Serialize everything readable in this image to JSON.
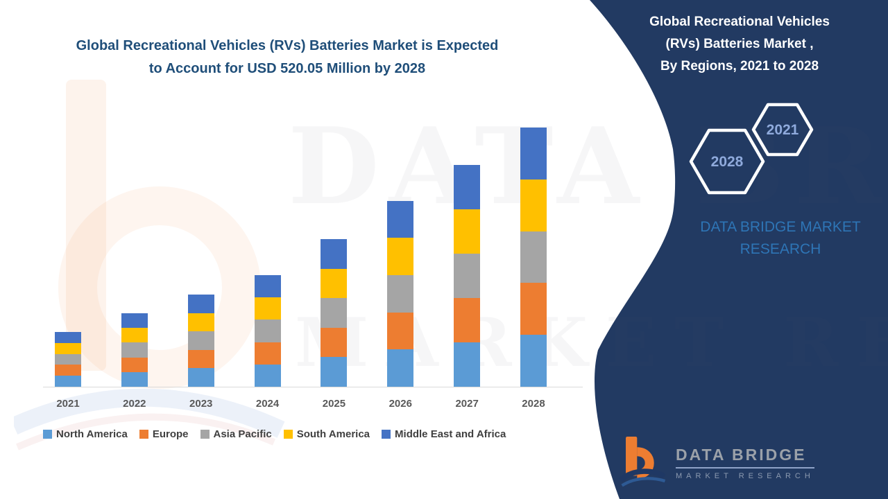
{
  "header": {
    "title_line1": "Global Recreational Vehicles (RVs) Batteries Market is Expected",
    "title_line2": "to Account for USD 520.05 Million by 2028"
  },
  "sidebar": {
    "title_line1": "Global Recreational Vehicles",
    "title_line2": "(RVs) Batteries Market ,",
    "title_line3": "By Regions,  2021 to 2028",
    "hexagon_back_year": "2021",
    "hexagon_front_year": "2028",
    "brand_text_line1": "DATA BRIDGE MARKET",
    "brand_text_line2": "RESEARCH",
    "logo_name": "DATA BRIDGE",
    "logo_tagline": "MARKET RESEARCH"
  },
  "watermark": {
    "line1": "DATA BRIDGE",
    "line2": "MARKET RESEARCH"
  },
  "chart_data": {
    "type": "bar",
    "stacked": true,
    "title": "Global Recreational Vehicles (RVs) Batteries Market, By Regions, 2021 to 2028",
    "unit": "USD Million",
    "categories": [
      "2021",
      "2022",
      "2023",
      "2024",
      "2025",
      "2026",
      "2027",
      "2028"
    ],
    "series": [
      {
        "name": "North America",
        "color": "#5B9BD5",
        "values": [
          22.0,
          29.5,
          37.0,
          44.8,
          59.2,
          74.6,
          89.0,
          104.01
        ]
      },
      {
        "name": "Europe",
        "color": "#ED7D31",
        "values": [
          22.0,
          29.5,
          37.0,
          44.8,
          59.2,
          74.6,
          89.0,
          104.01
        ]
      },
      {
        "name": "Asia Pacific",
        "color": "#A5A5A5",
        "values": [
          22.0,
          29.5,
          37.0,
          44.8,
          59.2,
          74.6,
          89.0,
          104.01
        ]
      },
      {
        "name": "South America",
        "color": "#FFC000",
        "values": [
          22.0,
          29.5,
          37.0,
          44.8,
          59.2,
          74.6,
          89.0,
          104.01
        ]
      },
      {
        "name": "Middle East and Africa",
        "color": "#4472C4",
        "values": [
          22.0,
          29.5,
          37.0,
          44.8,
          59.2,
          74.6,
          89.0,
          104.01
        ]
      }
    ],
    "totals": [
      110.0,
      147.5,
      185.0,
      224.0,
      296.0,
      373.0,
      445.0,
      520.05
    ],
    "ylim": [
      0,
      540
    ],
    "grid": false,
    "legend_position": "bottom",
    "xlabel": "",
    "ylabel": ""
  },
  "colors": {
    "sidebar_navy": "#223A62",
    "title_blue": "#1F4E79",
    "hexagon_year_text": "#8FAADC",
    "sidebar_brand_blue": "#2E75B6",
    "axis_line": "#D9D9D9",
    "tick_label": "#595959",
    "legend_text": "#404040",
    "logo_orange": "#ED7D31",
    "logo_gray": "#9BA1A9"
  }
}
